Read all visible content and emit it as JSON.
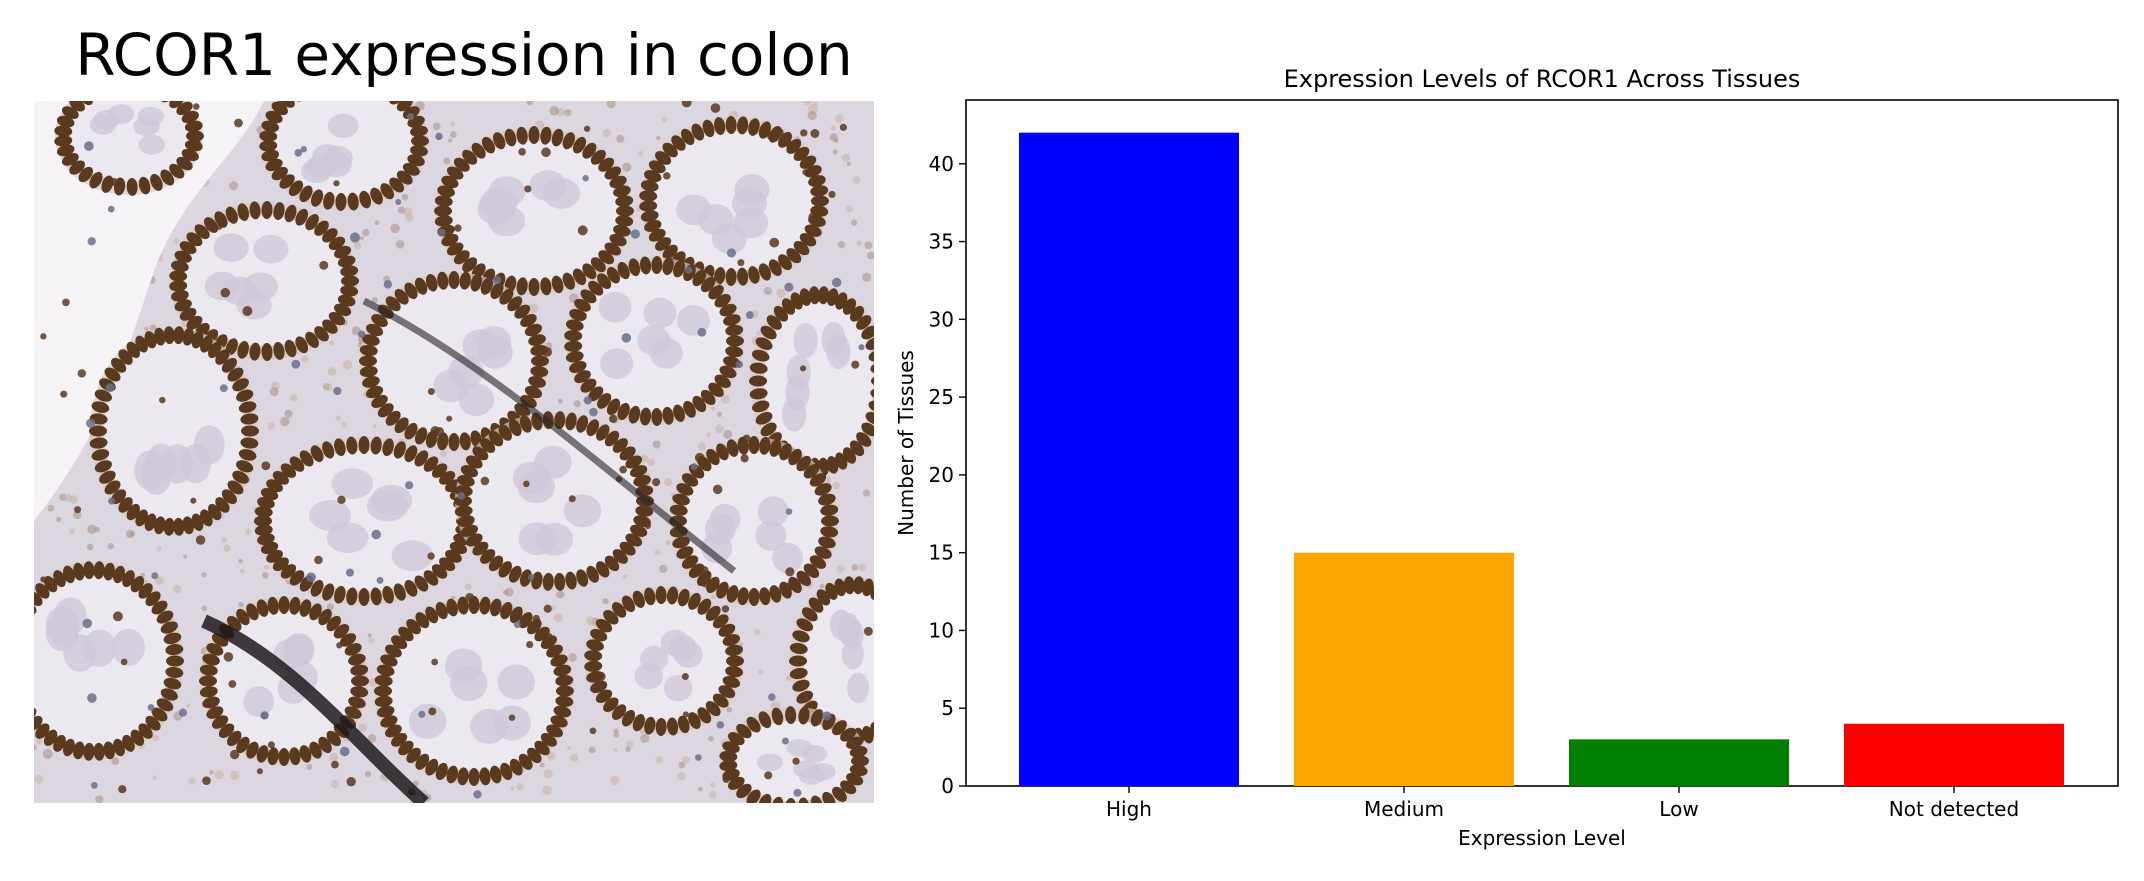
{
  "figure": {
    "image_title": "RCOR1 expression in colon"
  },
  "tissue_image": {
    "subject": "colon tissue immunohistochemistry micrograph",
    "colors": {
      "background": "#dcd6e0",
      "nuclei": "#5a3a1e",
      "glands": "#ece8f0",
      "stroma": "#c9b3a6"
    }
  },
  "chart_data": {
    "type": "bar",
    "title": "Expression Levels of RCOR1 Across Tissues",
    "xlabel": "Expression Level",
    "ylabel": "Number of Tissues",
    "categories": [
      "High",
      "Medium",
      "Low",
      "Not detected"
    ],
    "values": [
      42,
      15,
      3,
      4
    ],
    "colors": [
      "#0000ff",
      "#ffa500",
      "#008000",
      "#ff0000"
    ],
    "ylim": [
      0,
      44.1
    ],
    "yticks": [
      0,
      5,
      10,
      15,
      20,
      25,
      30,
      35,
      40
    ],
    "grid": false
  }
}
